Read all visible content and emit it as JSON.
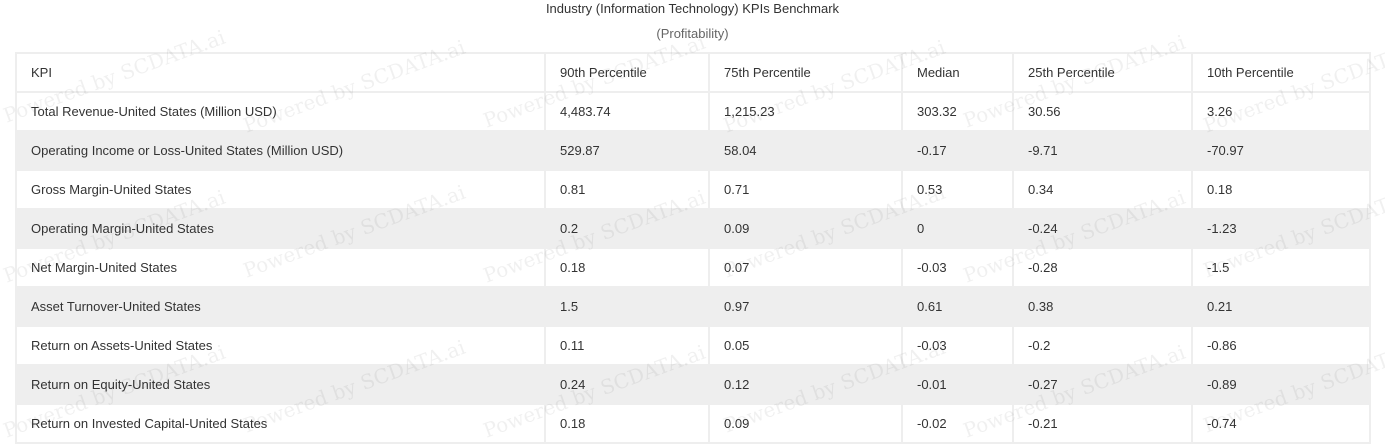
{
  "title": "Industry (Information Technology) KPIs Benchmark",
  "subtitle": "(Profitability)",
  "watermark_text": "Powered by SCDATA.ai",
  "chart_data": {
    "type": "table",
    "columns": [
      "KPI",
      "90th Percentile",
      "75th Percentile",
      "Median",
      "25th Percentile",
      "10th Percentile"
    ],
    "rows": [
      [
        "Total Revenue-United States (Million USD)",
        "4,483.74",
        "1,215.23",
        "303.32",
        "30.56",
        "3.26"
      ],
      [
        "Operating Income or Loss-United States (Million USD)",
        "529.87",
        "58.04",
        "-0.17",
        "-9.71",
        "-70.97"
      ],
      [
        "Gross Margin-United States",
        "0.81",
        "0.71",
        "0.53",
        "0.34",
        "0.18"
      ],
      [
        "Operating Margin-United States",
        "0.2",
        "0.09",
        "0",
        "-0.24",
        "-1.23"
      ],
      [
        "Net Margin-United States",
        "0.18",
        "0.07",
        "-0.03",
        "-0.28",
        "-1.5"
      ],
      [
        "Asset Turnover-United States",
        "1.5",
        "0.97",
        "0.61",
        "0.38",
        "0.21"
      ],
      [
        "Return on Assets-United States",
        "0.11",
        "0.05",
        "-0.03",
        "-0.2",
        "-0.86"
      ],
      [
        "Return on Equity-United States",
        "0.24",
        "0.12",
        "-0.01",
        "-0.27",
        "-0.89"
      ],
      [
        "Return on Invested Capital-United States",
        "0.18",
        "0.09",
        "-0.02",
        "-0.21",
        "-0.74"
      ]
    ]
  }
}
